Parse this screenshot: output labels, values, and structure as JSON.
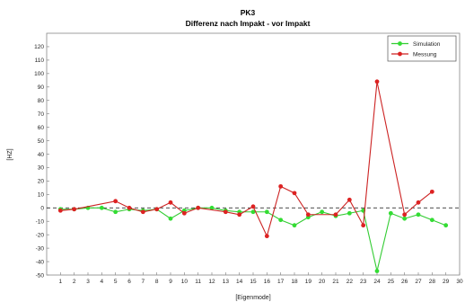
{
  "chart_data": {
    "type": "line",
    "title": "PK3",
    "subtitle": "Differenz nach Impakt - vor Impakt",
    "xlabel": "[Eigenmode]",
    "ylabel": "[HZ]",
    "xlim": [
      0,
      30
    ],
    "ylim": [
      -50,
      130
    ],
    "xticks": [
      1,
      2,
      3,
      4,
      5,
      6,
      7,
      8,
      9,
      10,
      11,
      12,
      13,
      14,
      15,
      16,
      17,
      18,
      19,
      20,
      21,
      22,
      23,
      24,
      25,
      26,
      27,
      28,
      29,
      30
    ],
    "yticks": [
      -50,
      -40,
      -30,
      -20,
      -10,
      0,
      10,
      20,
      30,
      40,
      50,
      60,
      70,
      80,
      90,
      100,
      110,
      120
    ],
    "zero_line": "dashed",
    "legend_position": "top-right",
    "series": [
      {
        "name": "Simulation",
        "color": "#33cc33",
        "marker_color": "#33dd33",
        "x": [
          1,
          2,
          3,
          4,
          5,
          6,
          7,
          8,
          9,
          10,
          11,
          12,
          13,
          14,
          15,
          16,
          17,
          18,
          19,
          20,
          21,
          22,
          23,
          24,
          25,
          26,
          27,
          28,
          29
        ],
        "y": [
          -1,
          -1,
          0,
          0,
          -3,
          -1,
          -2,
          -1,
          -8,
          -2,
          0,
          0,
          -2,
          -3,
          -3,
          -3,
          -9,
          -13,
          -7,
          -3,
          -6,
          -4,
          -2,
          -47,
          -4,
          -8,
          -5,
          -9,
          -13
        ]
      },
      {
        "name": "Messung",
        "color": "#cc2222",
        "marker_color": "#dd2222",
        "x": [
          1,
          2,
          5,
          6,
          7,
          8,
          9,
          10,
          11,
          13,
          14,
          15,
          16,
          17,
          18,
          19,
          21,
          22,
          23,
          24,
          26,
          27,
          28
        ],
        "y": [
          -2,
          -1,
          5,
          0,
          -3,
          -1,
          4,
          -4,
          0,
          -3,
          -5,
          1,
          -21,
          16,
          11,
          -5,
          -5,
          6,
          -13,
          94,
          -5,
          4,
          12
        ]
      }
    ]
  }
}
